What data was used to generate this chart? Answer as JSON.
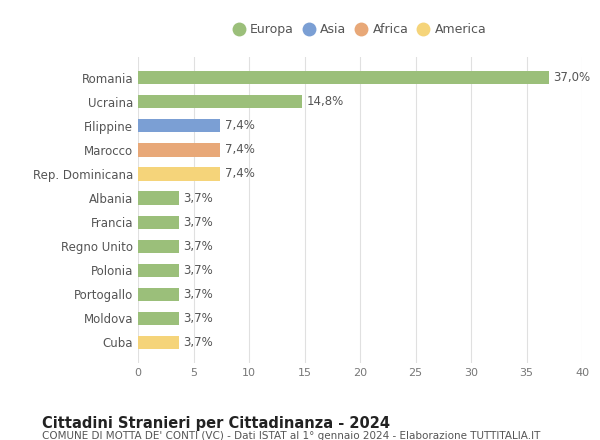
{
  "categories": [
    "Cuba",
    "Moldova",
    "Portogallo",
    "Polonia",
    "Regno Unito",
    "Francia",
    "Albania",
    "Rep. Dominicana",
    "Marocco",
    "Filippine",
    "Ucraina",
    "Romania"
  ],
  "values": [
    3.7,
    3.7,
    3.7,
    3.7,
    3.7,
    3.7,
    3.7,
    7.4,
    7.4,
    7.4,
    14.8,
    37.0
  ],
  "labels": [
    "3,7%",
    "3,7%",
    "3,7%",
    "3,7%",
    "3,7%",
    "3,7%",
    "3,7%",
    "7,4%",
    "7,4%",
    "7,4%",
    "14,8%",
    "37,0%"
  ],
  "colors": [
    "#f5d47a",
    "#9bbf7a",
    "#9bbf7a",
    "#9bbf7a",
    "#9bbf7a",
    "#9bbf7a",
    "#9bbf7a",
    "#f5d47a",
    "#e8a878",
    "#7b9fd4",
    "#9bbf7a",
    "#9bbf7a"
  ],
  "legend": [
    {
      "label": "Europa",
      "color": "#9bbf7a"
    },
    {
      "label": "Asia",
      "color": "#7b9fd4"
    },
    {
      "label": "Africa",
      "color": "#e8a878"
    },
    {
      "label": "America",
      "color": "#f5d47a"
    }
  ],
  "xlim": [
    0,
    40
  ],
  "xticks": [
    0,
    5,
    10,
    15,
    20,
    25,
    30,
    35,
    40
  ],
  "title": "Cittadini Stranieri per Cittadinanza - 2024",
  "subtitle": "COMUNE DI MOTTA DE' CONTI (VC) - Dati ISTAT al 1° gennaio 2024 - Elaborazione TUTTITALIA.IT",
  "bg_color": "#ffffff",
  "grid_color": "#e0e0e0",
  "bar_height": 0.55,
  "label_fontsize": 8.5,
  "title_fontsize": 10.5,
  "subtitle_fontsize": 7.5,
  "ytick_fontsize": 8.5,
  "xtick_fontsize": 8
}
